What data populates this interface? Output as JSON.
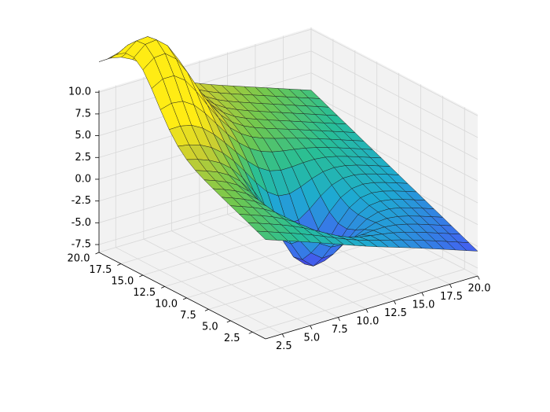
{
  "chart_data": {
    "type": "surface3d",
    "title": "",
    "xlabel": "",
    "ylabel": "",
    "zlabel": "",
    "colormap": "viridis-like (blue → green → yellow)",
    "grid": true,
    "pane_color": "#f2f2f2",
    "x_range": [
      1,
      20
    ],
    "y_range": [
      1,
      20
    ],
    "z_range": [
      -8.4,
      10.2
    ],
    "x_ticks": [
      2.5,
      5.0,
      7.5,
      10.0,
      12.5,
      15.0,
      17.5,
      20.0
    ],
    "x_tick_labels": [
      "2.5",
      "5.0",
      "7.5",
      "10.0",
      "12.5",
      "15.0",
      "17.5",
      "20.0"
    ],
    "y_ticks": [
      2.5,
      5.0,
      7.5,
      10.0,
      12.5,
      15.0,
      17.5,
      20.0
    ],
    "y_tick_labels": [
      "2.5",
      "5.0",
      "7.5",
      "10.0",
      "12.5",
      "15.0",
      "17.5",
      "20.0"
    ],
    "z_ticks": [
      -7.5,
      -5.0,
      -2.5,
      0.0,
      2.5,
      5.0,
      7.5,
      10.0
    ],
    "z_tick_labels": [
      "-7.5",
      "-5.0",
      "-2.5",
      "0.0",
      "2.5",
      "5.0",
      "7.5",
      "10.0"
    ],
    "surface": {
      "x_grid": [
        1,
        2,
        3,
        4,
        5,
        6,
        7,
        8,
        9,
        10,
        11,
        12,
        13,
        14,
        15,
        16,
        17,
        18,
        19,
        20
      ],
      "y_grid": [
        1,
        2,
        3,
        4,
        5,
        6,
        7,
        8,
        9,
        10,
        11,
        12,
        13,
        14,
        15,
        16,
        17,
        18,
        19,
        20
      ],
      "description": "Sloped plane z ≈ 3 + 0.45·(y − x) with a Gaussian peak ≈ +8.5 near (x≈3, y≈16) and a Gaussian trough ≈ −9 near (x≈10, y≈8)",
      "plane_offset": 3.0,
      "plane_slope": 0.45,
      "peak": {
        "x": 3.0,
        "y": 16.0,
        "amplitude": 8.5,
        "spread": 2.6
      },
      "trough": {
        "x": 10.0,
        "y": 8.0,
        "amplitude": -9.0,
        "spread": 2.4
      }
    }
  }
}
